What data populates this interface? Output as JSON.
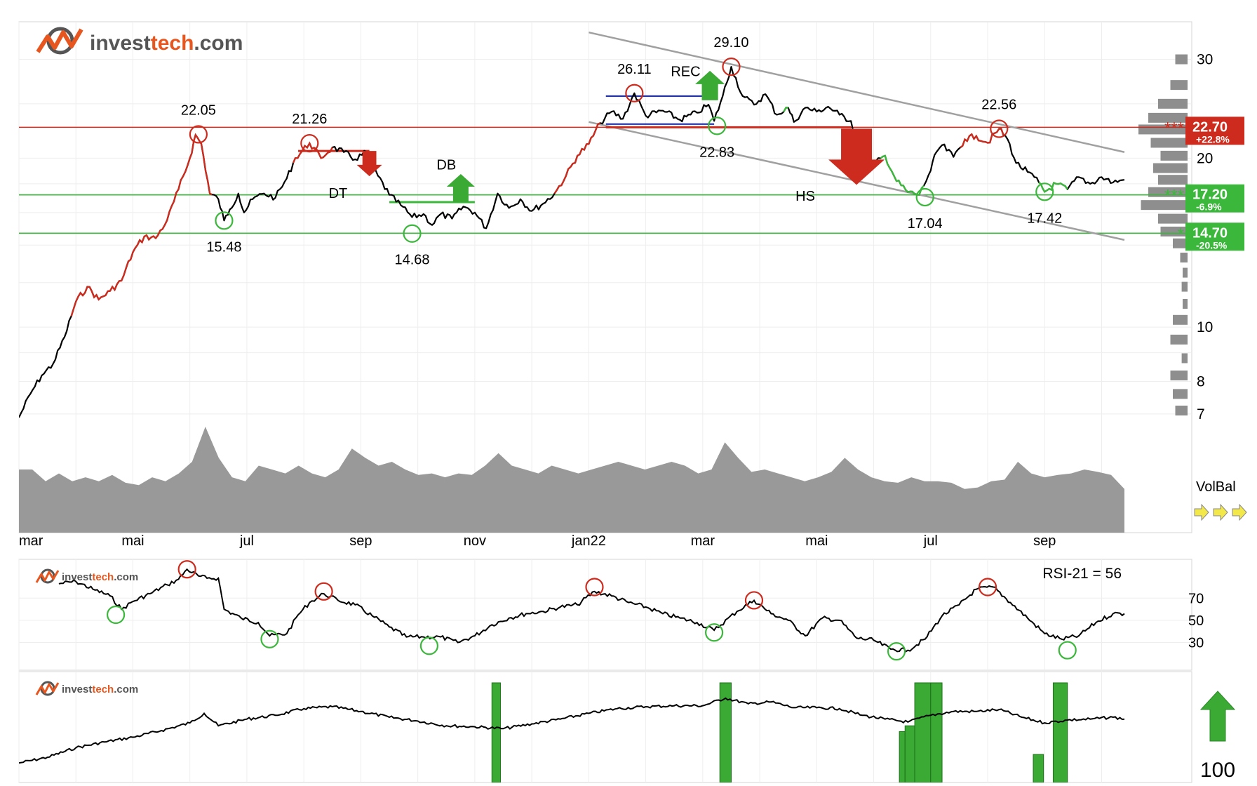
{
  "brand": {
    "name_part1": "invest",
    "name_part2": "tech",
    "name_part3": ".com",
    "colors": {
      "dark": "#555555",
      "accent": "#e8561f"
    }
  },
  "colors": {
    "resistance": "#cc2b1d",
    "support": "#3bb83b",
    "price": "#000000",
    "channel": "#a0a0a0",
    "rectangle": "#2233aa",
    "volume": "#999999",
    "volbal_arrow": "#f2e84a",
    "signal_bar": "#3aaa35",
    "up_arrow": "#3aaa35",
    "down_arrow": "#cc2b1d"
  },
  "chart_data": [
    {
      "type": "line",
      "panel": "price",
      "scale": "log",
      "ylim": [
        6.8,
        35
      ],
      "y_ticks": [
        "30",
        "20",
        "10",
        "8",
        "7"
      ],
      "y_tick_values": [
        30,
        20,
        10,
        8,
        7
      ],
      "x_ticks": [
        "mar",
        "mai",
        "jul",
        "sep",
        "nov",
        "jan22",
        "mar",
        "mai",
        "jul",
        "sep"
      ],
      "x_tick_months": [
        0,
        2,
        4,
        6,
        8,
        10,
        12,
        14,
        16,
        18
      ],
      "x_unit": "months since mar 2021",
      "xlim": [
        0,
        19.4
      ],
      "price_path": [
        [
          0,
          6.9
        ],
        [
          0.2,
          7.6
        ],
        [
          0.4,
          8.2
        ],
        [
          0.6,
          8.6
        ],
        [
          0.8,
          9.6
        ],
        [
          1.0,
          11.1
        ],
        [
          1.2,
          11.8
        ],
        [
          1.4,
          11.2
        ],
        [
          1.6,
          11.6
        ],
        [
          1.8,
          12.1
        ],
        [
          2.0,
          13.6
        ],
        [
          2.2,
          14.5
        ],
        [
          2.4,
          14.4
        ],
        [
          2.6,
          15.5
        ],
        [
          2.8,
          17.6
        ],
        [
          3.0,
          20.0
        ],
        [
          3.1,
          22.0
        ],
        [
          3.2,
          21.2
        ],
        [
          3.35,
          17.3
        ],
        [
          3.5,
          16.9
        ],
        [
          3.6,
          15.48
        ],
        [
          3.7,
          16.2
        ],
        [
          3.85,
          17.3
        ],
        [
          3.95,
          16.0
        ],
        [
          4.1,
          16.9
        ],
        [
          4.3,
          17.3
        ],
        [
          4.5,
          17.0
        ],
        [
          4.7,
          18.4
        ],
        [
          4.85,
          20.0
        ],
        [
          5.1,
          21.26
        ],
        [
          5.3,
          20.0
        ],
        [
          5.5,
          20.9
        ],
        [
          5.7,
          20.5
        ],
        [
          5.9,
          19.9
        ],
        [
          6.1,
          20.5
        ],
        [
          6.3,
          18.6
        ],
        [
          6.5,
          17.2
        ],
        [
          6.7,
          16.5
        ],
        [
          6.9,
          15.7
        ],
        [
          7.1,
          15.9
        ],
        [
          7.25,
          15.2
        ],
        [
          7.4,
          15.9
        ],
        [
          7.6,
          15.6
        ],
        [
          7.8,
          16.4
        ],
        [
          8.0,
          16.0
        ],
        [
          8.2,
          15.0
        ],
        [
          8.4,
          17.3
        ],
        [
          8.6,
          16.3
        ],
        [
          8.8,
          16.9
        ],
        [
          9.0,
          16.1
        ],
        [
          9.2,
          16.6
        ],
        [
          9.4,
          17.3
        ],
        [
          9.6,
          18.6
        ],
        [
          9.8,
          20.2
        ],
        [
          10.0,
          21.2
        ],
        [
          10.2,
          23.1
        ],
        [
          10.4,
          24.2
        ],
        [
          10.6,
          23.5
        ],
        [
          10.8,
          26.11
        ],
        [
          11.0,
          23.8
        ],
        [
          11.3,
          24.3
        ],
        [
          11.6,
          23.4
        ],
        [
          11.9,
          24.1
        ],
        [
          12.1,
          24.9
        ],
        [
          12.2,
          23.3
        ],
        [
          12.35,
          25.8
        ],
        [
          12.5,
          29.1
        ],
        [
          12.7,
          25.8
        ],
        [
          12.9,
          24.9
        ],
        [
          13.1,
          26.0
        ],
        [
          13.3,
          23.9
        ],
        [
          13.5,
          24.6
        ],
        [
          13.6,
          23.2
        ],
        [
          13.8,
          24.6
        ],
        [
          14.0,
          24.2
        ],
        [
          14.2,
          24.7
        ],
        [
          14.4,
          23.9
        ],
        [
          14.6,
          23.3
        ],
        [
          14.8,
          20.0
        ],
        [
          15.0,
          19.5
        ],
        [
          15.2,
          20.2
        ],
        [
          15.4,
          18.2
        ],
        [
          15.6,
          17.4
        ],
        [
          15.8,
          17.2
        ],
        [
          16.0,
          19.0
        ],
        [
          16.1,
          20.5
        ],
        [
          16.2,
          21.1
        ],
        [
          16.4,
          20.1
        ],
        [
          16.6,
          21.6
        ],
        [
          16.8,
          21.9
        ],
        [
          17.0,
          21.3
        ],
        [
          17.2,
          22.56
        ],
        [
          17.35,
          21.6
        ],
        [
          17.5,
          19.6
        ],
        [
          17.7,
          18.9
        ],
        [
          17.9,
          18.1
        ],
        [
          18.0,
          17.42
        ],
        [
          18.2,
          18.0
        ],
        [
          18.4,
          17.6
        ],
        [
          18.6,
          18.5
        ],
        [
          18.8,
          18.0
        ],
        [
          19.0,
          18.5
        ],
        [
          19.2,
          18.1
        ],
        [
          19.4,
          18.3
        ]
      ],
      "red_segments": [
        [
          0.9,
          3.4
        ],
        [
          4.8,
          5.5
        ],
        [
          9.4,
          10.2
        ],
        [
          16.5,
          17.3
        ]
      ],
      "green_segments": [
        [
          13.4,
          13.5
        ],
        [
          15.1,
          15.9
        ],
        [
          17.9,
          18.4
        ]
      ],
      "tops": [
        {
          "label": "22.05",
          "x": 3.15,
          "y": 22.05
        },
        {
          "label": "21.26",
          "x": 5.1,
          "y": 21.26
        },
        {
          "label": "26.11",
          "x": 10.8,
          "y": 26.11
        },
        {
          "label": "29.10",
          "x": 12.5,
          "y": 29.1
        },
        {
          "label": "22.56",
          "x": 17.2,
          "y": 22.56
        }
      ],
      "bottoms": [
        {
          "label": "15.48",
          "x": 3.6,
          "y": 15.48
        },
        {
          "label": "14.68",
          "x": 6.9,
          "y": 14.68
        },
        {
          "label": "22.83",
          "x": 12.25,
          "y": 22.83
        },
        {
          "label": "17.04",
          "x": 15.9,
          "y": 17.04
        },
        {
          "label": "17.42",
          "x": 18.0,
          "y": 17.42
        }
      ],
      "levels": [
        {
          "label": "22.70",
          "change": "+22.8%",
          "y": 22.7,
          "kind": "resistance",
          "stars": "***"
        },
        {
          "label": "17.20",
          "change": "-6.9%",
          "y": 17.2,
          "kind": "support",
          "stars": "***"
        },
        {
          "label": "14.70",
          "change": "-20.5%",
          "y": 14.7,
          "kind": "support",
          "stars": "*"
        }
      ],
      "channel": {
        "upper": [
          [
            10.0,
            33.5
          ],
          [
            19.4,
            20.5
          ]
        ],
        "lower": [
          [
            10.0,
            23.2
          ],
          [
            19.4,
            14.3
          ]
        ]
      },
      "formations": [
        {
          "label": "DT",
          "signal": "sell",
          "x0": 4.9,
          "x1": 6.15,
          "y": 20.6,
          "text_x": 5.6,
          "text_y": 17.0
        },
        {
          "label": "DB",
          "signal": "buy",
          "x0": 6.5,
          "x1": 8.0,
          "y": 16.7,
          "text_x": 7.5,
          "text_y": 19.1
        },
        {
          "label": "REC",
          "signal": "buy",
          "x0": 10.3,
          "x1": 12.2,
          "y": 25.8,
          "y2": 23.0,
          "text_x": 11.7,
          "text_y": 28.0
        },
        {
          "label": "HS",
          "signal": "sell",
          "x0": 10.3,
          "x1": 14.6,
          "y": 22.7,
          "text_x": 13.8,
          "text_y": 16.8
        }
      ],
      "volume_profile": [
        [
          30,
          0.25
        ],
        [
          27,
          0.35
        ],
        [
          25,
          0.6
        ],
        [
          23.6,
          0.8
        ],
        [
          22.5,
          1.0
        ],
        [
          21.3,
          0.75
        ],
        [
          20.2,
          0.55
        ],
        [
          19.2,
          0.7
        ],
        [
          18.3,
          0.6
        ],
        [
          17.4,
          0.8
        ],
        [
          16.5,
          0.95
        ],
        [
          15.6,
          0.6
        ],
        [
          14.8,
          0.55
        ],
        [
          14.1,
          0.3
        ],
        [
          13.3,
          0.15
        ],
        [
          12.5,
          0.1
        ],
        [
          11.8,
          0.12
        ],
        [
          11.0,
          0.1
        ],
        [
          10.3,
          0.3
        ],
        [
          9.5,
          0.35
        ],
        [
          8.8,
          0.12
        ],
        [
          8.2,
          0.35
        ],
        [
          7.6,
          0.3
        ],
        [
          7.1,
          0.25
        ]
      ]
    },
    {
      "type": "area",
      "panel": "volume",
      "label": "VolBal",
      "values": [
        0.45,
        0.45,
        0.3,
        0.4,
        0.3,
        0.35,
        0.3,
        0.38,
        0.28,
        0.25,
        0.35,
        0.3,
        0.4,
        0.55,
        1.0,
        0.6,
        0.35,
        0.3,
        0.5,
        0.45,
        0.4,
        0.5,
        0.4,
        0.35,
        0.45,
        0.72,
        0.6,
        0.5,
        0.55,
        0.45,
        0.38,
        0.4,
        0.35,
        0.4,
        0.38,
        0.5,
        0.66,
        0.5,
        0.45,
        0.4,
        0.5,
        0.45,
        0.4,
        0.45,
        0.5,
        0.55,
        0.5,
        0.45,
        0.5,
        0.55,
        0.5,
        0.4,
        0.45,
        0.8,
        0.6,
        0.42,
        0.45,
        0.4,
        0.35,
        0.3,
        0.35,
        0.42,
        0.6,
        0.45,
        0.35,
        0.3,
        0.28,
        0.35,
        0.3,
        0.3,
        0.28,
        0.2,
        0.22,
        0.3,
        0.32,
        0.55,
        0.4,
        0.35,
        0.38,
        0.4,
        0.45,
        0.42,
        0.38,
        0.2
      ],
      "arrows": 3
    },
    {
      "type": "line",
      "panel": "rsi",
      "title": "RSI-21 = 56",
      "ylim": [
        5,
        105
      ],
      "y_ticks": [
        "70",
        "50",
        "30"
      ],
      "y_tick_values": [
        70,
        50,
        30
      ],
      "xlim": [
        0,
        19.4
      ],
      "path": [
        [
          0.7,
          83
        ],
        [
          1.0,
          85
        ],
        [
          1.3,
          78
        ],
        [
          1.6,
          72
        ],
        [
          1.8,
          60
        ],
        [
          2.0,
          67
        ],
        [
          2.3,
          74
        ],
        [
          2.6,
          82
        ],
        [
          2.8,
          87
        ],
        [
          2.95,
          96
        ],
        [
          3.15,
          90
        ],
        [
          3.3,
          88
        ],
        [
          3.5,
          88
        ],
        [
          3.6,
          60
        ],
        [
          3.9,
          52
        ],
        [
          4.2,
          48
        ],
        [
          4.4,
          36
        ],
        [
          4.7,
          38
        ],
        [
          4.9,
          55
        ],
        [
          5.1,
          66
        ],
        [
          5.35,
          74
        ],
        [
          5.6,
          68
        ],
        [
          5.9,
          64
        ],
        [
          6.2,
          54
        ],
        [
          6.5,
          44
        ],
        [
          6.8,
          35
        ],
        [
          7.1,
          35
        ],
        [
          7.4,
          35
        ],
        [
          7.7,
          30
        ],
        [
          8.0,
          36
        ],
        [
          8.3,
          46
        ],
        [
          8.6,
          52
        ],
        [
          8.9,
          56
        ],
        [
          9.2,
          58
        ],
        [
          9.5,
          62
        ],
        [
          9.8,
          64
        ],
        [
          10.1,
          76
        ],
        [
          10.4,
          72
        ],
        [
          10.7,
          66
        ],
        [
          11.0,
          62
        ],
        [
          11.3,
          56
        ],
        [
          11.6,
          52
        ],
        [
          11.9,
          48
        ],
        [
          12.2,
          41
        ],
        [
          12.6,
          58
        ],
        [
          12.9,
          68
        ],
        [
          13.2,
          56
        ],
        [
          13.5,
          50
        ],
        [
          13.8,
          36
        ],
        [
          14.1,
          52
        ],
        [
          14.4,
          50
        ],
        [
          14.7,
          34
        ],
        [
          15.0,
          32
        ],
        [
          15.3,
          24
        ],
        [
          15.6,
          23
        ],
        [
          15.9,
          33
        ],
        [
          16.2,
          54
        ],
        [
          16.5,
          64
        ],
        [
          16.8,
          78
        ],
        [
          17.1,
          80
        ],
        [
          17.4,
          66
        ],
        [
          17.7,
          52
        ],
        [
          18.0,
          38
        ],
        [
          18.3,
          33
        ],
        [
          18.6,
          36
        ],
        [
          18.9,
          48
        ],
        [
          19.2,
          56
        ],
        [
          19.4,
          56
        ]
      ],
      "tops": [
        [
          2.95,
          96
        ],
        [
          5.35,
          76
        ],
        [
          10.1,
          80
        ],
        [
          12.9,
          68
        ],
        [
          17.0,
          80
        ]
      ],
      "bottoms": [
        [
          1.7,
          55
        ],
        [
          4.4,
          33
        ],
        [
          7.2,
          27
        ],
        [
          12.2,
          39
        ],
        [
          15.4,
          22
        ],
        [
          18.4,
          23
        ]
      ]
    },
    {
      "type": "bar",
      "panel": "insider",
      "ylim": [
        0,
        100
      ],
      "xlim": [
        0,
        19.4
      ],
      "line_path": [
        [
          0,
          16
        ],
        [
          0.5,
          22
        ],
        [
          1.0,
          32
        ],
        [
          1.5,
          38
        ],
        [
          2.0,
          43
        ],
        [
          2.5,
          50
        ],
        [
          3.0,
          58
        ],
        [
          3.25,
          68
        ],
        [
          3.5,
          55
        ],
        [
          4.0,
          62
        ],
        [
          4.5,
          66
        ],
        [
          5.0,
          73
        ],
        [
          5.5,
          75
        ],
        [
          6.0,
          70
        ],
        [
          6.5,
          64
        ],
        [
          7.0,
          60
        ],
        [
          7.5,
          55
        ],
        [
          8.0,
          54
        ],
        [
          8.5,
          52
        ],
        [
          9.0,
          57
        ],
        [
          9.5,
          62
        ],
        [
          10.0,
          68
        ],
        [
          10.5,
          73
        ],
        [
          11.0,
          75
        ],
        [
          11.5,
          76
        ],
        [
          12.0,
          76
        ],
        [
          12.4,
          84
        ],
        [
          12.8,
          78
        ],
        [
          13.2,
          80
        ],
        [
          13.6,
          74
        ],
        [
          14.0,
          74
        ],
        [
          14.4,
          73
        ],
        [
          14.8,
          66
        ],
        [
          15.2,
          62
        ],
        [
          15.6,
          59
        ],
        [
          16.0,
          66
        ],
        [
          16.4,
          70
        ],
        [
          16.8,
          70
        ],
        [
          17.2,
          72
        ],
        [
          17.6,
          64
        ],
        [
          18.0,
          58
        ],
        [
          18.4,
          61
        ],
        [
          18.8,
          62
        ],
        [
          19.2,
          64
        ],
        [
          19.4,
          62
        ]
      ],
      "bars": [
        {
          "x0": 8.3,
          "x1": 8.45,
          "value": 100
        },
        {
          "x0": 12.3,
          "x1": 12.5,
          "value": 100
        },
        {
          "x0": 15.45,
          "x1": 15.55,
          "value": 49
        },
        {
          "x0": 15.55,
          "x1": 15.72,
          "value": 55
        },
        {
          "x0": 15.72,
          "x1": 16.0,
          "value": 100
        },
        {
          "x0": 16.0,
          "x1": 16.2,
          "value": 100
        },
        {
          "x0": 17.8,
          "x1": 17.98,
          "value": 25
        },
        {
          "x0": 18.15,
          "x1": 18.4,
          "value": 100
        }
      ],
      "score": "100"
    }
  ]
}
